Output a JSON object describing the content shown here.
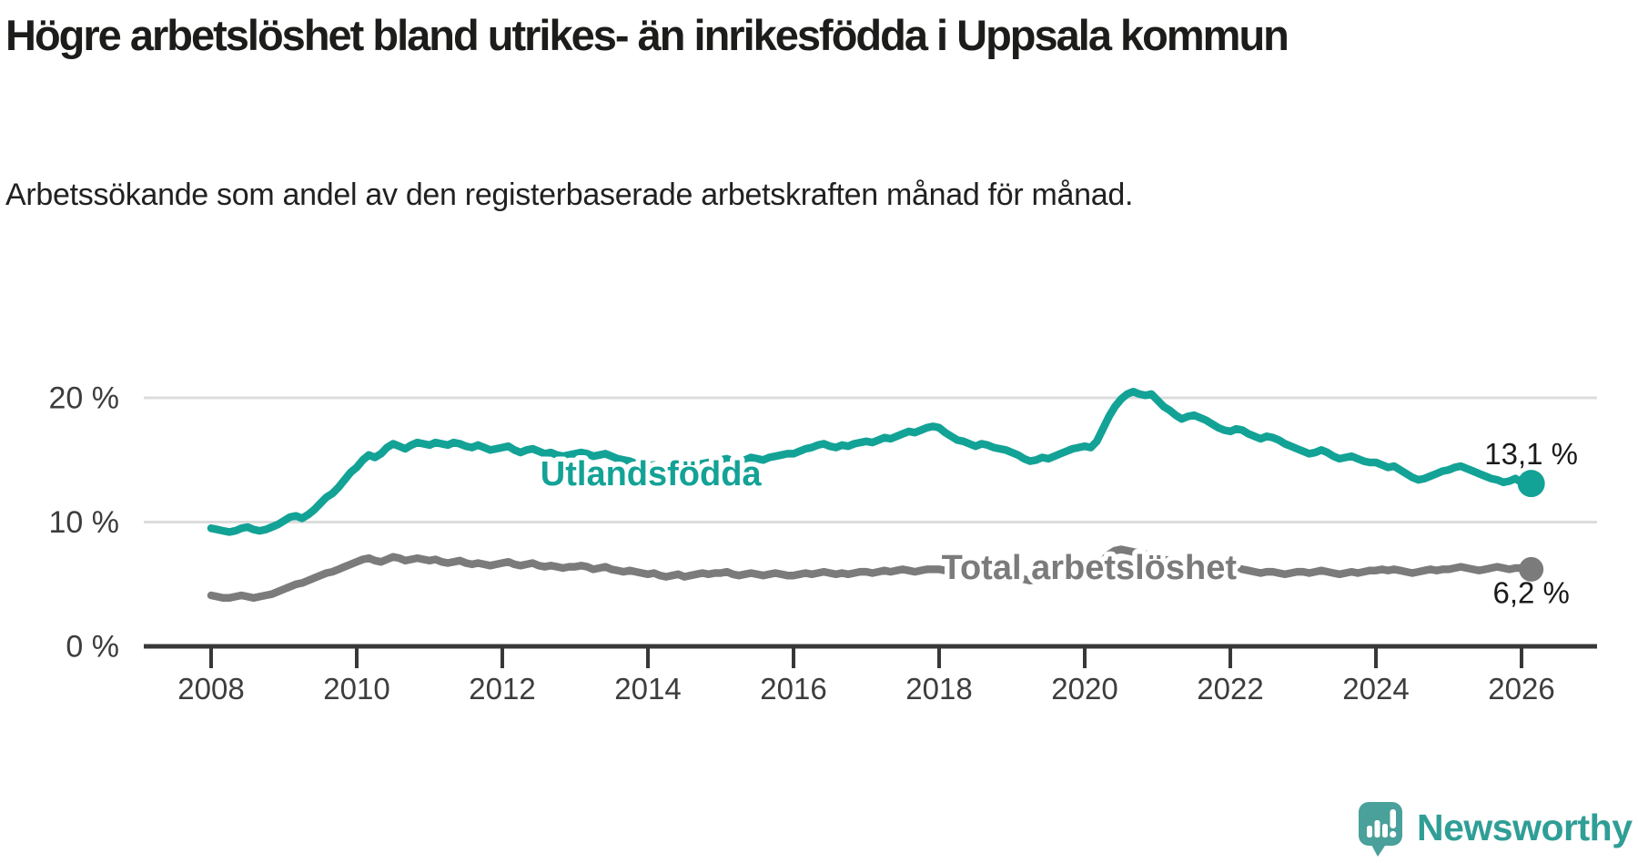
{
  "header": {
    "title": "Högre arbetslöshet bland utrikes- än inrikesfödda i Uppsala kommun",
    "subtitle": "Arbetssökande som andel av den registerbaserade arbetskraften månad för månad."
  },
  "footer": {
    "brand": "Newsworthy"
  },
  "colors": {
    "accent_teal": "#13a296",
    "series_gray": "#7b7b7b",
    "gridline": "#dcdcdc",
    "axis": "#383838",
    "tick_text": "#3d3d3d",
    "value_text": "#1a1a1a",
    "logo_teal": "#4aa09a",
    "logo_text_teal": "#2f9e96"
  },
  "chart_data": {
    "type": "line",
    "title": "Högre arbetslöshet bland utrikes- än inrikesfödda i Uppsala kommun",
    "subtitle": "Arbetssökande som andel av den registerbaserade arbetskraften månad för månad.",
    "x_unit": "month",
    "x_start_year": 2008,
    "x_end_label_year": 2026.08,
    "xlim": [
      2007.1,
      2027.1
    ],
    "ylim": [
      0,
      22
    ],
    "grid": "horizontal",
    "legend_position": "inline-labels",
    "x_ticks": [
      2008,
      2010,
      2012,
      2014,
      2016,
      2018,
      2020,
      2022,
      2024,
      2026
    ],
    "y_ticks": [
      {
        "value": 0,
        "label": "0 %"
      },
      {
        "value": 10,
        "label": "10 %"
      },
      {
        "value": 20,
        "label": "20 %"
      }
    ],
    "series": [
      {
        "name": "Utlandsfödda",
        "color": "#13a296",
        "end_value": 13.1,
        "end_label": "13,1 %",
        "label_pos": {
          "year": 2014.04,
          "value": 12.97
        },
        "values": [
          9.5,
          9.4,
          9.3,
          9.2,
          9.3,
          9.5,
          9.6,
          9.4,
          9.3,
          9.4,
          9.6,
          9.8,
          10.1,
          10.4,
          10.5,
          10.3,
          10.6,
          11.0,
          11.5,
          12.0,
          12.3,
          12.8,
          13.4,
          14.0,
          14.4,
          15.0,
          15.4,
          15.2,
          15.5,
          16.0,
          16.3,
          16.1,
          15.9,
          16.2,
          16.4,
          16.3,
          16.2,
          16.4,
          16.3,
          16.2,
          16.4,
          16.3,
          16.1,
          16.0,
          16.2,
          16.0,
          15.8,
          15.9,
          16.0,
          16.1,
          15.8,
          15.6,
          15.8,
          15.9,
          15.7,
          15.5,
          15.6,
          15.4,
          15.3,
          15.4,
          15.5,
          15.6,
          15.5,
          15.3,
          15.4,
          15.5,
          15.3,
          15.1,
          15.0,
          14.9,
          14.7,
          14.6,
          14.5,
          14.6,
          14.4,
          14.3,
          14.4,
          14.5,
          14.3,
          14.4,
          14.6,
          14.7,
          14.8,
          14.9,
          15.0,
          15.1,
          14.9,
          14.8,
          15.0,
          15.2,
          15.1,
          15.0,
          15.2,
          15.3,
          15.4,
          15.5,
          15.5,
          15.7,
          15.9,
          16.0,
          16.2,
          16.3,
          16.1,
          16.0,
          16.2,
          16.1,
          16.3,
          16.4,
          16.5,
          16.4,
          16.6,
          16.8,
          16.7,
          16.9,
          17.1,
          17.3,
          17.2,
          17.4,
          17.6,
          17.7,
          17.6,
          17.2,
          16.9,
          16.6,
          16.5,
          16.3,
          16.1,
          16.3,
          16.2,
          16.0,
          15.9,
          15.8,
          15.6,
          15.4,
          15.1,
          14.9,
          15.0,
          15.2,
          15.1,
          15.3,
          15.5,
          15.7,
          15.9,
          16.0,
          16.1,
          16.0,
          16.5,
          17.5,
          18.5,
          19.3,
          19.9,
          20.3,
          20.5,
          20.3,
          20.2,
          20.3,
          19.8,
          19.3,
          19.0,
          18.6,
          18.3,
          18.5,
          18.6,
          18.4,
          18.2,
          17.9,
          17.6,
          17.4,
          17.3,
          17.5,
          17.4,
          17.1,
          16.9,
          16.7,
          16.9,
          16.8,
          16.6,
          16.3,
          16.1,
          15.9,
          15.7,
          15.5,
          15.6,
          15.8,
          15.6,
          15.3,
          15.1,
          15.2,
          15.3,
          15.1,
          14.9,
          14.8,
          14.8,
          14.6,
          14.4,
          14.5,
          14.2,
          13.9,
          13.6,
          13.4,
          13.5,
          13.7,
          13.9,
          14.1,
          14.2,
          14.4,
          14.5,
          14.3,
          14.1,
          13.9,
          13.7,
          13.5,
          13.4,
          13.2,
          13.3,
          13.5,
          13.2,
          13.1
        ]
      },
      {
        "name": "Total arbetslöshet",
        "color": "#7b7b7b",
        "end_value": 6.2,
        "end_label": "6,2 %",
        "label_pos": {
          "year": 2020.06,
          "value": 5.42
        },
        "values": [
          4.1,
          4.0,
          3.9,
          3.9,
          4.0,
          4.1,
          4.0,
          3.9,
          4.0,
          4.1,
          4.2,
          4.4,
          4.6,
          4.8,
          5.0,
          5.1,
          5.3,
          5.5,
          5.7,
          5.9,
          6.0,
          6.2,
          6.4,
          6.6,
          6.8,
          7.0,
          7.1,
          6.9,
          6.8,
          7.0,
          7.2,
          7.1,
          6.9,
          7.0,
          7.1,
          7.0,
          6.9,
          7.0,
          6.8,
          6.7,
          6.8,
          6.9,
          6.7,
          6.6,
          6.7,
          6.6,
          6.5,
          6.6,
          6.7,
          6.8,
          6.6,
          6.5,
          6.6,
          6.7,
          6.5,
          6.4,
          6.5,
          6.4,
          6.3,
          6.4,
          6.4,
          6.5,
          6.4,
          6.2,
          6.3,
          6.4,
          6.2,
          6.1,
          6.0,
          6.1,
          6.0,
          5.9,
          5.8,
          5.9,
          5.7,
          5.6,
          5.7,
          5.8,
          5.6,
          5.7,
          5.8,
          5.9,
          5.8,
          5.9,
          5.9,
          6.0,
          5.8,
          5.7,
          5.8,
          5.9,
          5.8,
          5.7,
          5.8,
          5.9,
          5.8,
          5.7,
          5.7,
          5.8,
          5.9,
          5.8,
          5.9,
          6.0,
          5.9,
          5.8,
          5.9,
          5.8,
          5.9,
          6.0,
          6.0,
          5.9,
          6.0,
          6.1,
          6.0,
          6.1,
          6.2,
          6.1,
          6.0,
          6.1,
          6.2,
          6.2,
          6.2,
          6.1,
          6.0,
          5.9,
          5.9,
          5.8,
          5.7,
          5.8,
          5.8,
          5.7,
          5.6,
          5.6,
          5.6,
          5.5,
          5.4,
          5.3,
          5.4,
          5.5,
          5.5,
          5.6,
          5.7,
          5.8,
          5.9,
          6.0,
          6.1,
          6.0,
          6.3,
          6.9,
          7.4,
          7.7,
          7.8,
          7.7,
          7.6,
          7.5,
          7.4,
          7.4,
          7.2,
          7.0,
          6.9,
          6.7,
          6.6,
          6.7,
          6.7,
          6.6,
          6.5,
          6.4,
          6.3,
          6.2,
          6.2,
          6.3,
          6.2,
          6.1,
          6.0,
          5.9,
          6.0,
          6.0,
          5.9,
          5.8,
          5.9,
          6.0,
          6.0,
          5.9,
          6.0,
          6.1,
          6.0,
          5.9,
          5.8,
          5.9,
          6.0,
          5.9,
          6.0,
          6.1,
          6.1,
          6.2,
          6.1,
          6.2,
          6.1,
          6.0,
          5.9,
          6.0,
          6.1,
          6.2,
          6.1,
          6.2,
          6.2,
          6.3,
          6.4,
          6.3,
          6.2,
          6.1,
          6.2,
          6.3,
          6.4,
          6.3,
          6.2,
          6.3,
          6.3,
          6.2
        ]
      }
    ]
  }
}
